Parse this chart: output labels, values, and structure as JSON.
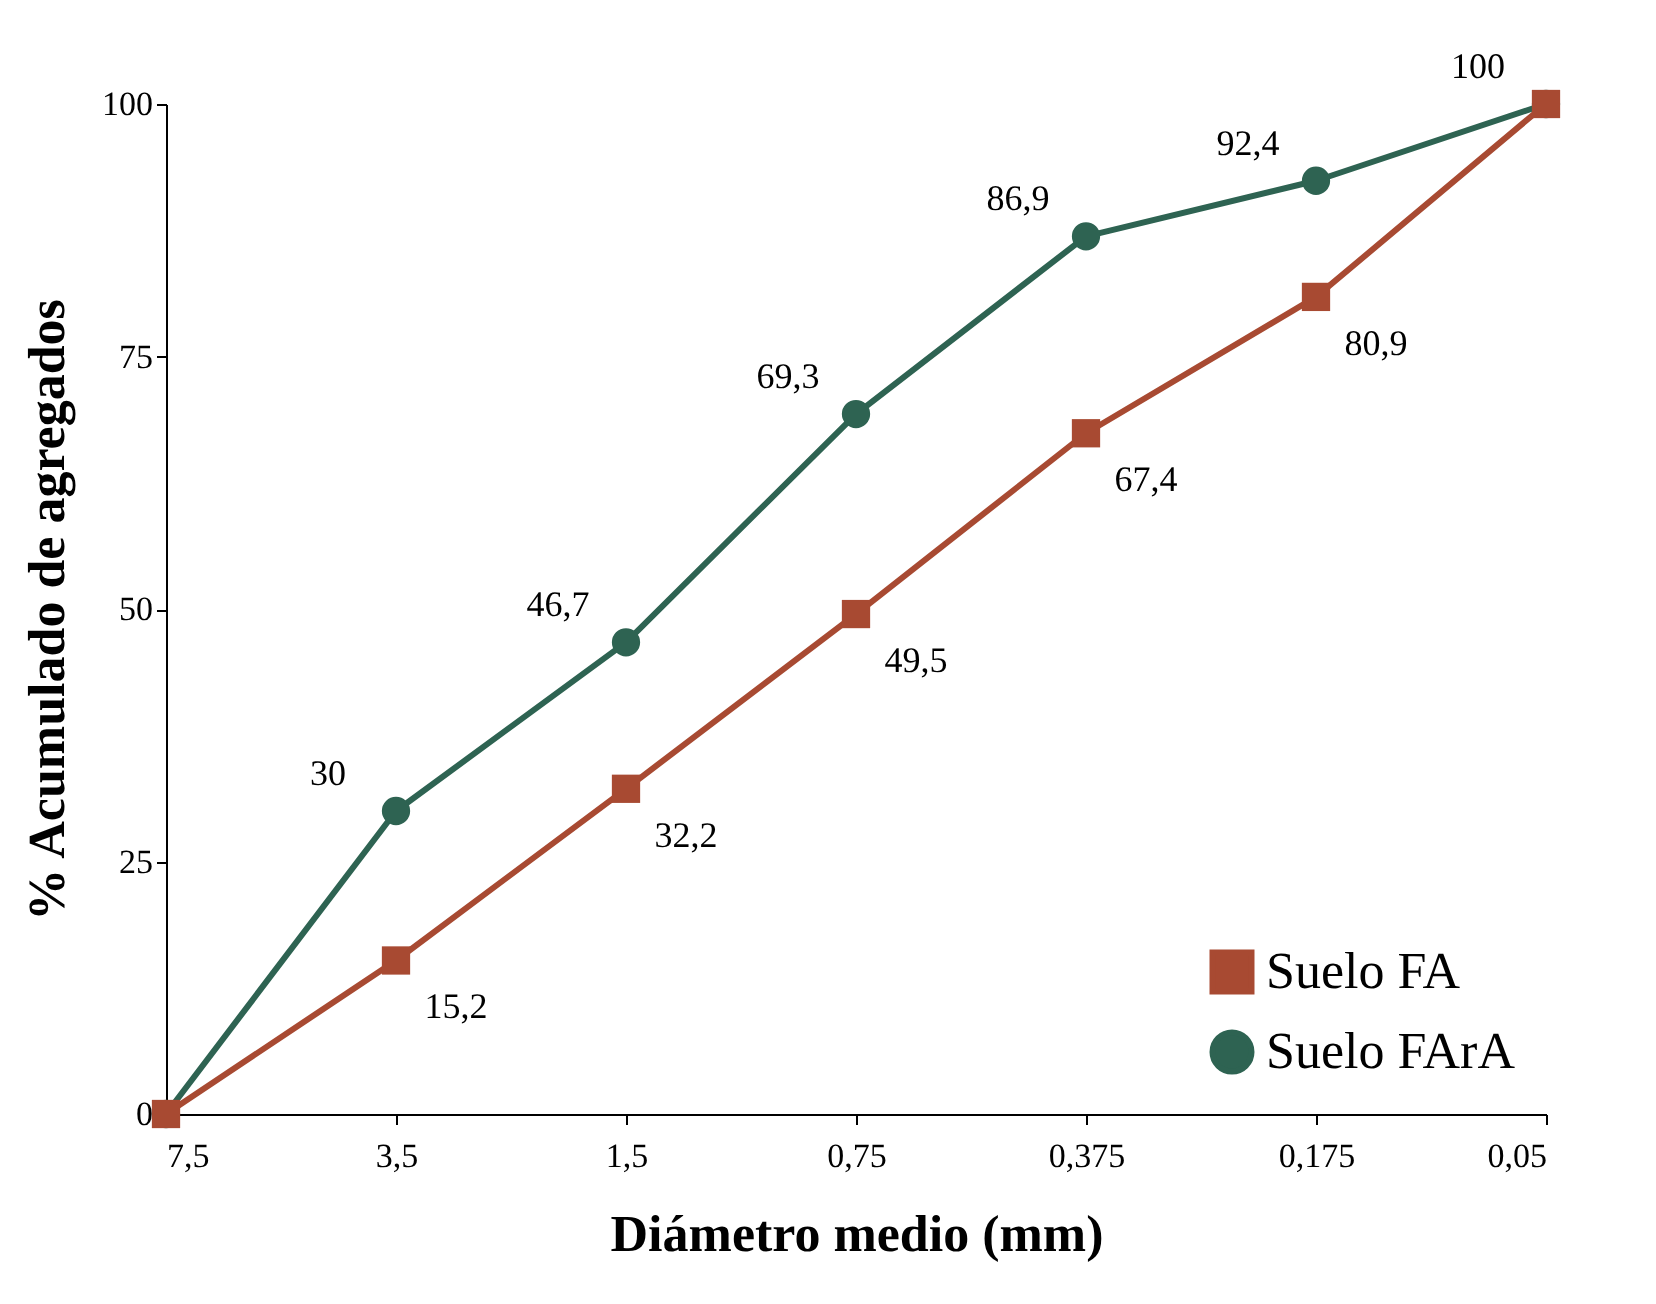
{
  "chart_data": {
    "type": "line",
    "xlabel": "Diámetro medio (mm)",
    "ylabel": "% Acumulado de agregados",
    "categories": [
      "7,5",
      "3,5",
      "1,5",
      "0,75",
      "0,375",
      "0,175",
      "0,05"
    ],
    "series": [
      {
        "name": "Suelo FA",
        "color": "#a84a32",
        "marker": "square",
        "values": [
          0,
          15.2,
          32.2,
          49.5,
          67.4,
          80.9,
          100
        ],
        "value_labels": [
          null,
          "15,2",
          "32,2",
          "49,5",
          "67,4",
          "80,9",
          null
        ]
      },
      {
        "name": "Suelo FArA",
        "color": "#2e6352",
        "marker": "circle",
        "values": [
          0,
          30,
          46.7,
          69.3,
          86.9,
          92.4,
          100
        ],
        "value_labels": [
          null,
          "30",
          "46,7",
          "69,3",
          "86,9",
          "92,4",
          "100"
        ]
      }
    ],
    "ylim": [
      0,
      100
    ],
    "yticks": [
      0,
      25,
      50,
      75,
      100
    ],
    "grid": false,
    "legend": "bottom right",
    "line_style": "solid"
  }
}
